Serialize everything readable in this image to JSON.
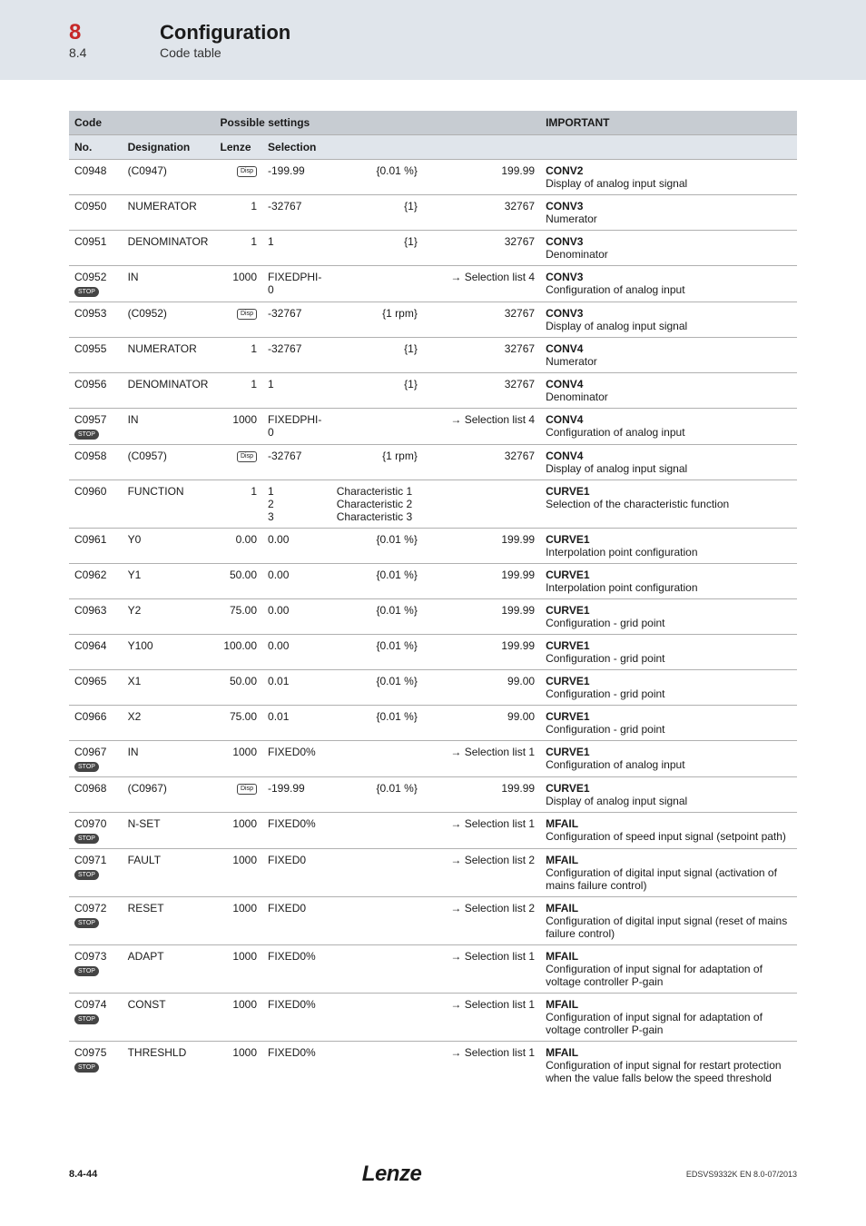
{
  "header": {
    "section_no": "8",
    "section_title": "Configuration",
    "sub_no": "8.4",
    "sub_title": "Code table"
  },
  "table": {
    "headers": {
      "code": "Code",
      "possible": "Possible settings",
      "important": "IMPORTANT"
    },
    "subheaders": {
      "no": "No.",
      "designation": "Designation",
      "lenze": "Lenze",
      "selection": "Selection"
    },
    "rows": [
      {
        "no": "C0948",
        "des": "(C0947)",
        "lenze_icon": "disp",
        "sel_a": "-199.99",
        "sel_b": "{0.01 %}",
        "sel_c": "199.99",
        "imp_h": "CONV2",
        "imp_t": "Display of analog input signal"
      },
      {
        "no": "C0950",
        "des": "NUMERATOR",
        "lenze": "1",
        "sel_a": "-32767",
        "sel_b": "{1}",
        "sel_c": "32767",
        "imp_h": "CONV3",
        "imp_t": "Numerator"
      },
      {
        "no": "C0951",
        "des": "DENOMINATOR",
        "lenze": "1",
        "sel_a": "1",
        "sel_b": "{1}",
        "sel_c": "32767",
        "imp_h": "CONV3",
        "imp_t": "Denominator"
      },
      {
        "no": "C0952",
        "stop": true,
        "des": "IN",
        "lenze": "1000",
        "sel_a": "FIXEDPHI-0",
        "sel_b": "",
        "sel_c": "→ Selection list 4",
        "imp_h": "CONV3",
        "imp_t": "Configuration of analog input"
      },
      {
        "no": "C0953",
        "des": "(C0952)",
        "lenze_icon": "disp",
        "sel_a": "-32767",
        "sel_b": "{1 rpm}",
        "sel_c": "32767",
        "imp_h": "CONV3",
        "imp_t": "Display of analog input signal"
      },
      {
        "no": "C0955",
        "des": "NUMERATOR",
        "lenze": "1",
        "sel_a": "-32767",
        "sel_b": "{1}",
        "sel_c": "32767",
        "imp_h": "CONV4",
        "imp_t": "Numerator"
      },
      {
        "no": "C0956",
        "des": "DENOMINATOR",
        "lenze": "1",
        "sel_a": "1",
        "sel_b": "{1}",
        "sel_c": "32767",
        "imp_h": "CONV4",
        "imp_t": "Denominator"
      },
      {
        "no": "C0957",
        "stop": true,
        "des": "IN",
        "lenze": "1000",
        "sel_a": "FIXEDPHI-0",
        "sel_b": "",
        "sel_c": "→ Selection list 4",
        "imp_h": "CONV4",
        "imp_t": "Configuration of analog input"
      },
      {
        "no": "C0958",
        "des": "(C0957)",
        "lenze_icon": "disp",
        "sel_a": "-32767",
        "sel_b": "{1 rpm}",
        "sel_c": "32767",
        "imp_h": "CONV4",
        "imp_t": "Display of analog input signal"
      },
      {
        "no": "C0960",
        "des": "FUNCTION",
        "lenze": "1",
        "sel_multi": [
          [
            "1",
            "Characteristic 1"
          ],
          [
            "2",
            "Characteristic 2"
          ],
          [
            "3",
            "Characteristic 3"
          ]
        ],
        "imp_h": "CURVE1",
        "imp_t": "Selection of the characteristic function"
      },
      {
        "no": "C0961",
        "des": "Y0",
        "lenze": "0.00",
        "sel_a": "0.00",
        "sel_b": "{0.01 %}",
        "sel_c": "199.99",
        "imp_h": "CURVE1",
        "imp_t": "Interpolation point configuration"
      },
      {
        "no": "C0962",
        "des": "Y1",
        "lenze": "50.00",
        "sel_a": "0.00",
        "sel_b": "{0.01 %}",
        "sel_c": "199.99",
        "imp_h": "CURVE1",
        "imp_t": "Interpolation point configuration"
      },
      {
        "no": "C0963",
        "des": "Y2",
        "lenze": "75.00",
        "sel_a": "0.00",
        "sel_b": "{0.01 %}",
        "sel_c": "199.99",
        "imp_h": "CURVE1",
        "imp_t": "Configuration - grid point"
      },
      {
        "no": "C0964",
        "des": "Y100",
        "lenze": "100.00",
        "sel_a": "0.00",
        "sel_b": "{0.01 %}",
        "sel_c": "199.99",
        "imp_h": "CURVE1",
        "imp_t": "Configuration - grid point"
      },
      {
        "no": "C0965",
        "des": "X1",
        "lenze": "50.00",
        "sel_a": "0.01",
        "sel_b": "{0.01 %}",
        "sel_c": "99.00",
        "imp_h": "CURVE1",
        "imp_t": "Configuration - grid point"
      },
      {
        "no": "C0966",
        "des": "X2",
        "lenze": "75.00",
        "sel_a": "0.01",
        "sel_b": "{0.01 %}",
        "sel_c": "99.00",
        "imp_h": "CURVE1",
        "imp_t": "Configuration - grid point"
      },
      {
        "no": "C0967",
        "stop": true,
        "des": "IN",
        "lenze": "1000",
        "sel_a": "FIXED0%",
        "sel_b": "",
        "sel_c": "→ Selection list 1",
        "imp_h": "CURVE1",
        "imp_t": "Configuration of analog input"
      },
      {
        "no": "C0968",
        "des": "(C0967)",
        "lenze_icon": "disp",
        "sel_a": "-199.99",
        "sel_b": "{0.01 %}",
        "sel_c": "199.99",
        "imp_h": "CURVE1",
        "imp_t": "Display of analog input signal"
      },
      {
        "no": "C0970",
        "stop": true,
        "des": "N-SET",
        "lenze": "1000",
        "sel_a": "FIXED0%",
        "sel_b": "",
        "sel_c": "→ Selection list 1",
        "imp_h": "MFAIL",
        "imp_t": "Configuration of speed input signal (setpoint path)"
      },
      {
        "no": "C0971",
        "stop": true,
        "des": "FAULT",
        "lenze": "1000",
        "sel_a": "FIXED0",
        "sel_b": "",
        "sel_c": "→ Selection list 2",
        "imp_h": "MFAIL",
        "imp_t": "Configuration of digital input signal (activation of mains failure control)"
      },
      {
        "no": "C0972",
        "stop": true,
        "des": "RESET",
        "lenze": "1000",
        "sel_a": "FIXED0",
        "sel_b": "",
        "sel_c": "→ Selection list 2",
        "imp_h": "MFAIL",
        "imp_t": "Configuration of digital input signal (reset of mains failure control)"
      },
      {
        "no": "C0973",
        "stop": true,
        "des": "ADAPT",
        "lenze": "1000",
        "sel_a": "FIXED0%",
        "sel_b": "",
        "sel_c": "→ Selection list 1",
        "imp_h": "MFAIL",
        "imp_t": "Configuration of input signal for adaptation of voltage controller P-gain"
      },
      {
        "no": "C0974",
        "stop": true,
        "des": "CONST",
        "lenze": "1000",
        "sel_a": "FIXED0%",
        "sel_b": "",
        "sel_c": "→ Selection list 1",
        "imp_h": "MFAIL",
        "imp_t": "Configuration of input signal for adaptation of voltage controller P-gain"
      },
      {
        "no": "C0975",
        "stop": true,
        "des": "THRESHLD",
        "lenze": "1000",
        "sel_a": "FIXED0%",
        "sel_b": "",
        "sel_c": "→ Selection list 1",
        "imp_h": "MFAIL",
        "imp_t": "Configuration of input signal for restart protection when the value falls below the speed threshold"
      }
    ]
  },
  "footer": {
    "page_ref": "8.4-44",
    "brand": "Lenze",
    "docref": "EDSVS9332K EN 8.0-07/2013"
  },
  "icons": {
    "disp_label": "Disp",
    "stop_label": "STOP"
  }
}
